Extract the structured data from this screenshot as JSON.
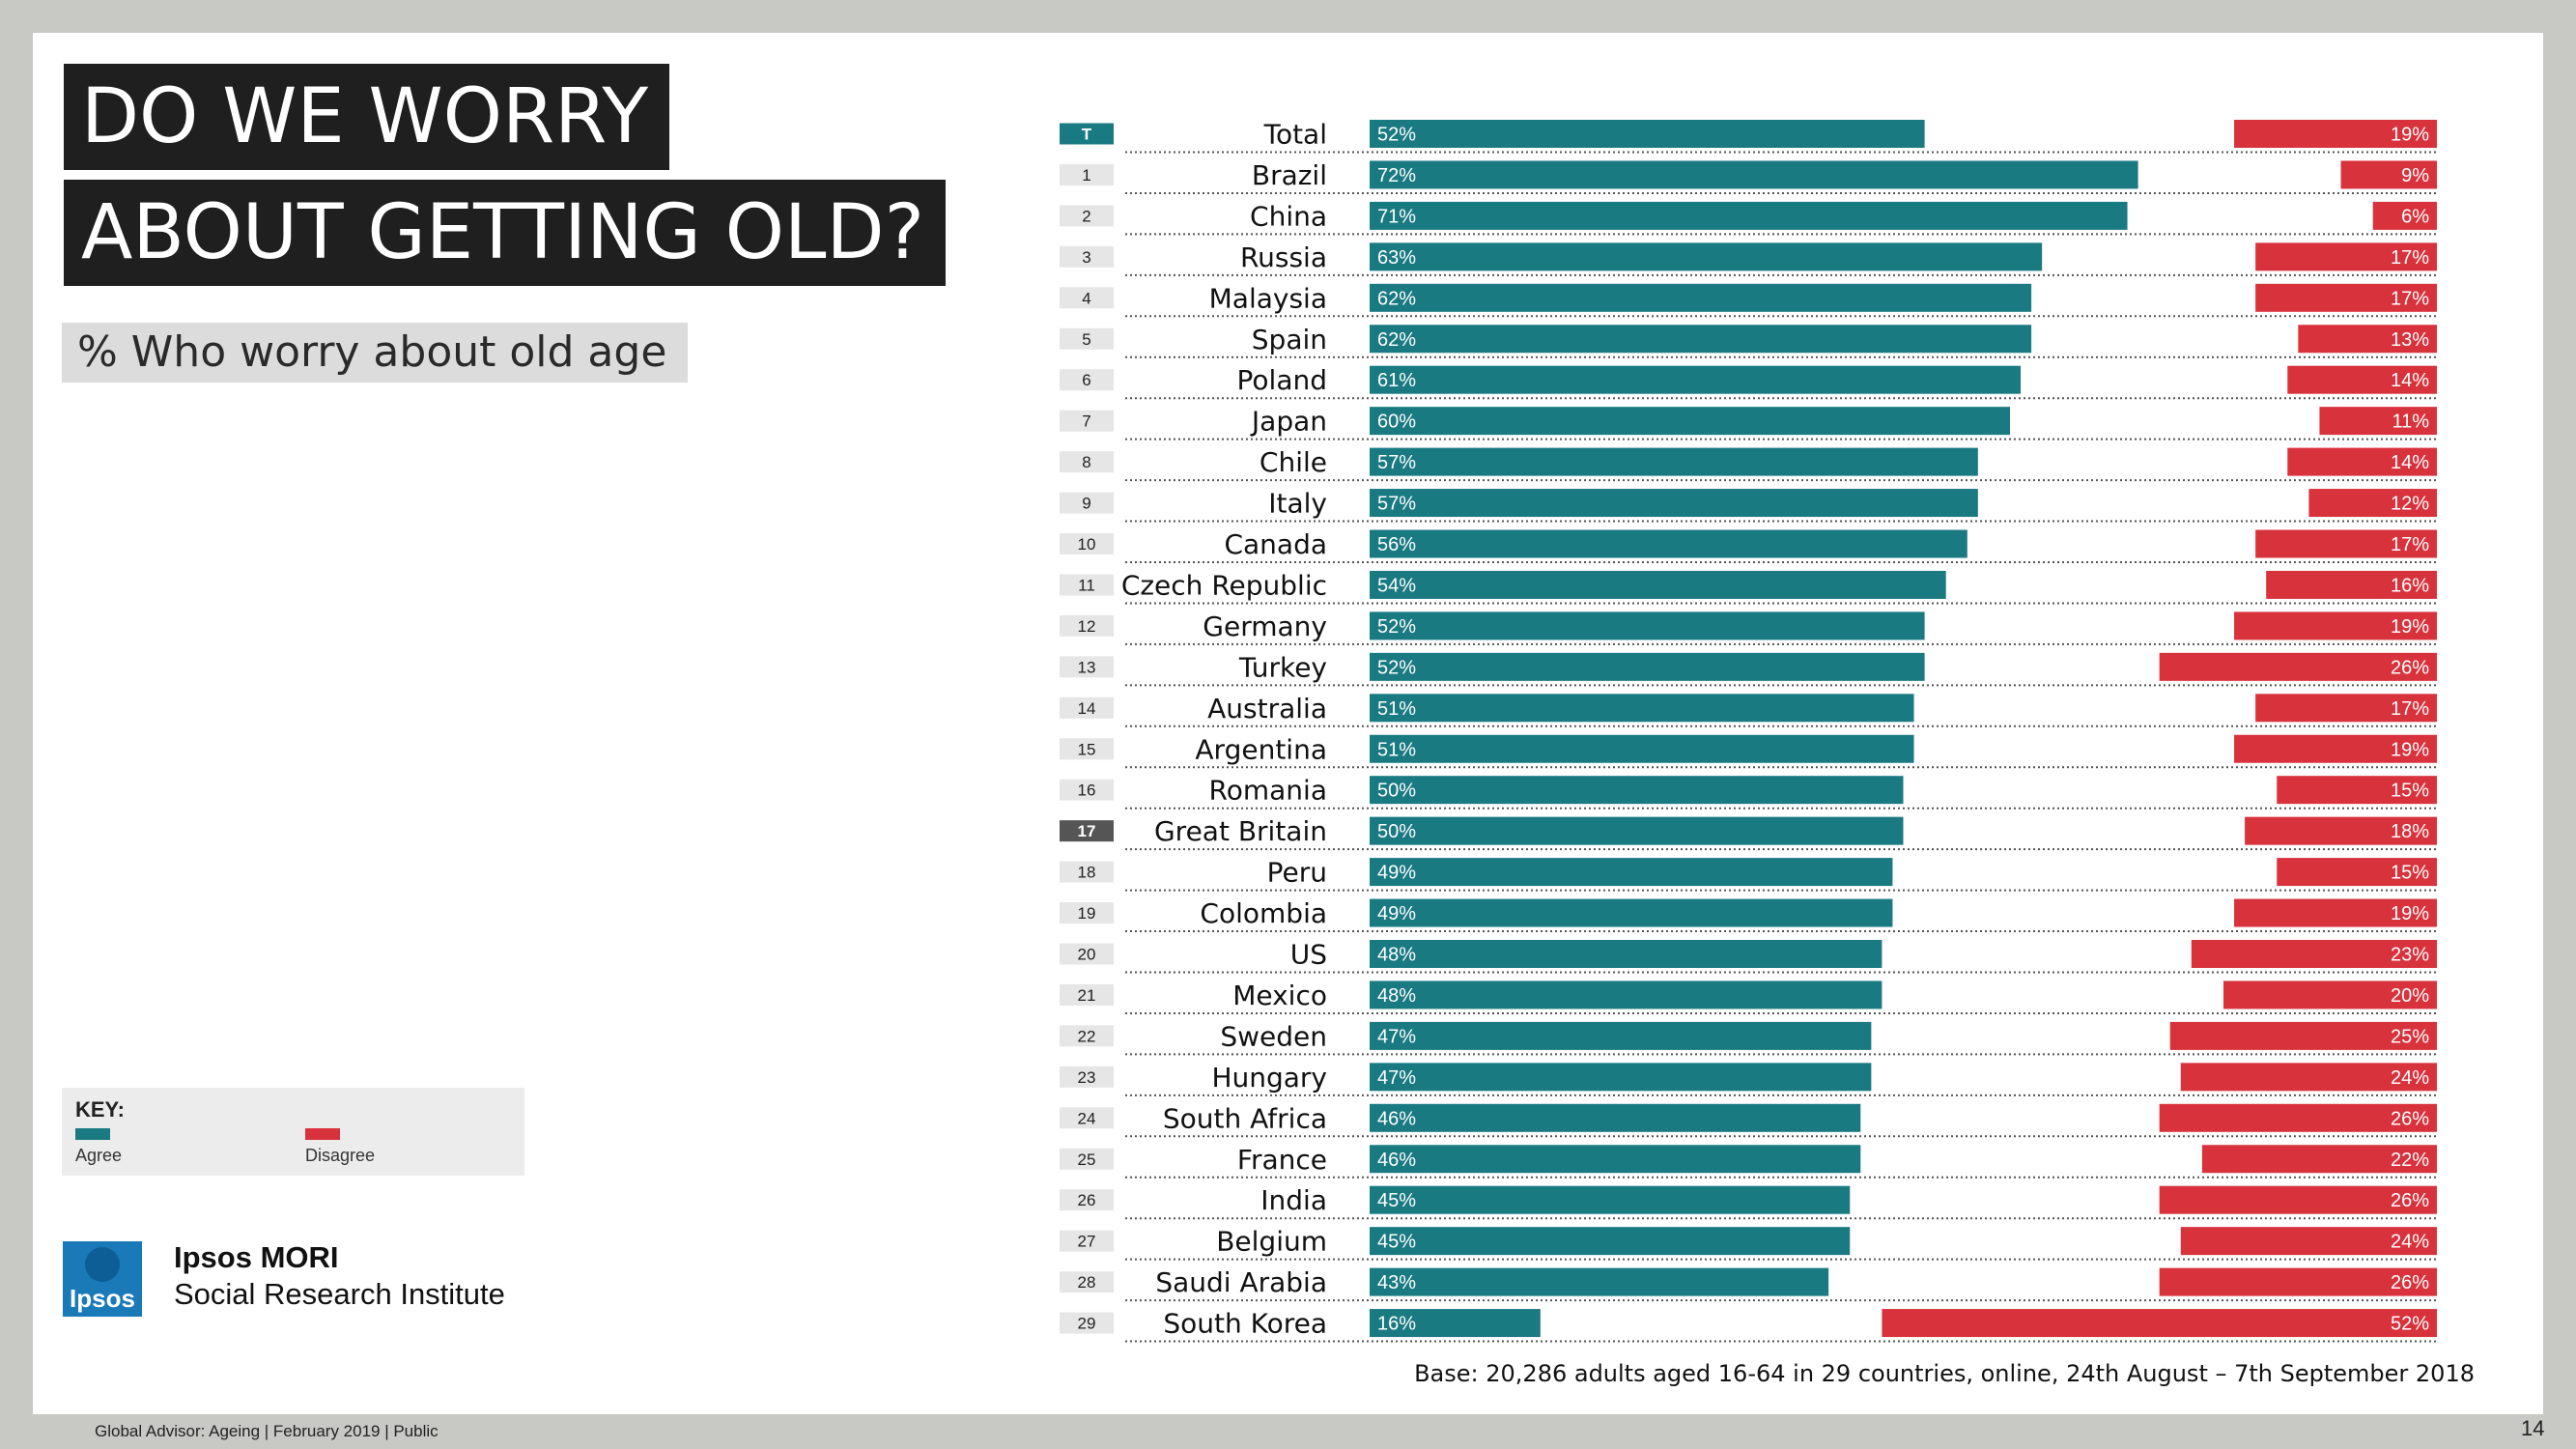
{
  "title_line1": "DO WE WORRY",
  "title_line2": "ABOUT GETTING OLD?",
  "subtitle": "% Who worry about old age",
  "key": {
    "title": "KEY:",
    "agree": "Agree",
    "disagree": "Disagree"
  },
  "brand": {
    "logo_text": "Ipsos",
    "org_line1": "Ipsos MORI",
    "org_line2": "Social Research Institute"
  },
  "footer": "Global Advisor: Ageing | February 2019 | Public",
  "page_number": "14",
  "colors": {
    "agree": "#1a7a82",
    "disagree": "#d8323c",
    "rank_bg": "#e6e6e6",
    "rank_highlight": "#555555"
  },
  "chart_data": {
    "type": "bar",
    "base_note": "Base: 20,286 adults aged 16-64 in 29 countries, online, 24th August – 7th September 2018",
    "categories": [
      "Total",
      "Brazil",
      "China",
      "Russia",
      "Malaysia",
      "Spain",
      "Poland",
      "Japan",
      "Chile",
      "Italy",
      "Canada",
      "Czech Republic",
      "Germany",
      "Turkey",
      "Australia",
      "Argentina",
      "Romania",
      "Great Britain",
      "Peru",
      "Colombia",
      "US",
      "Mexico",
      "Sweden",
      "Hungary",
      "South Africa",
      "France",
      "India",
      "Belgium",
      "Saudi Arabia",
      "South Korea"
    ],
    "ranks": [
      "T",
      "1",
      "2",
      "3",
      "4",
      "5",
      "6",
      "7",
      "8",
      "9",
      "10",
      "11",
      "12",
      "13",
      "14",
      "15",
      "16",
      "17",
      "18",
      "19",
      "20",
      "21",
      "22",
      "23",
      "24",
      "25",
      "26",
      "27",
      "28",
      "29"
    ],
    "series": [
      {
        "name": "Agree",
        "values": [
          52,
          72,
          71,
          63,
          62,
          62,
          61,
          60,
          57,
          57,
          56,
          54,
          52,
          52,
          51,
          51,
          50,
          50,
          49,
          49,
          48,
          48,
          47,
          47,
          46,
          46,
          45,
          45,
          43,
          16
        ]
      },
      {
        "name": "Disagree",
        "values": [
          19,
          9,
          6,
          17,
          17,
          13,
          14,
          11,
          14,
          12,
          17,
          16,
          19,
          26,
          17,
          19,
          15,
          18,
          15,
          19,
          23,
          20,
          25,
          24,
          26,
          22,
          26,
          24,
          26,
          52
        ]
      }
    ],
    "labels_agree": [
      "52%",
      "72%",
      "71%",
      "63%",
      "62%",
      "62%",
      "61%",
      "60%",
      "57%",
      "57%",
      "56%",
      "54%",
      "52%",
      "52%",
      "51%",
      "51%",
      "50%",
      "50%",
      "49%",
      "49%",
      "48%",
      "48%",
      "47%",
      "47%",
      "46%",
      "46%",
      "45%",
      "45%",
      "43%",
      "16%"
    ],
    "labels_disagree": [
      "19%",
      "9%",
      "6%",
      "17%",
      "17%",
      "13%",
      "14%",
      "11%",
      "14%",
      "12%",
      "17%",
      "16%",
      "19%",
      "26%",
      "17%",
      "19%",
      "15%",
      "18%",
      "15%",
      "19%",
      "23%",
      "20%",
      "25%",
      "24%",
      "26%",
      "22%",
      "26%",
      "24%",
      "26%",
      "52%"
    ],
    "highlight_ranks": [
      "T",
      "17"
    ],
    "xlim": [
      0,
      100
    ]
  }
}
